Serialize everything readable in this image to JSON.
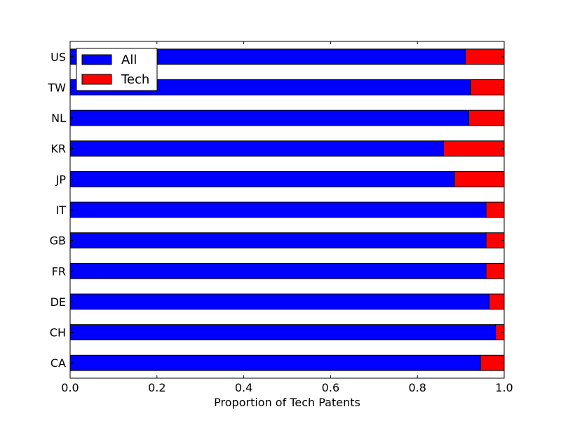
{
  "chart_data": {
    "type": "bar",
    "orientation": "horizontal",
    "stacked": true,
    "title": "",
    "xlabel": "Proportion of Tech Patents",
    "ylabel": "",
    "xlim": [
      0.0,
      1.0
    ],
    "xticks": [
      "0.0",
      "0.2",
      "0.4",
      "0.6",
      "0.8",
      "1.0"
    ],
    "grid": false,
    "legend_position": "top-left",
    "categories": [
      "CA",
      "CH",
      "DE",
      "FR",
      "GB",
      "IT",
      "JP",
      "KR",
      "NL",
      "TW",
      "US"
    ],
    "series": [
      {
        "name": "All",
        "color": "#0000ff",
        "values": [
          0.945,
          0.98,
          0.965,
          0.958,
          0.958,
          0.958,
          0.885,
          0.86,
          0.918,
          0.922,
          0.91
        ]
      },
      {
        "name": "Tech",
        "color": "#ff0000",
        "values": [
          0.055,
          0.02,
          0.035,
          0.042,
          0.042,
          0.042,
          0.115,
          0.14,
          0.082,
          0.078,
          0.09
        ]
      }
    ]
  }
}
